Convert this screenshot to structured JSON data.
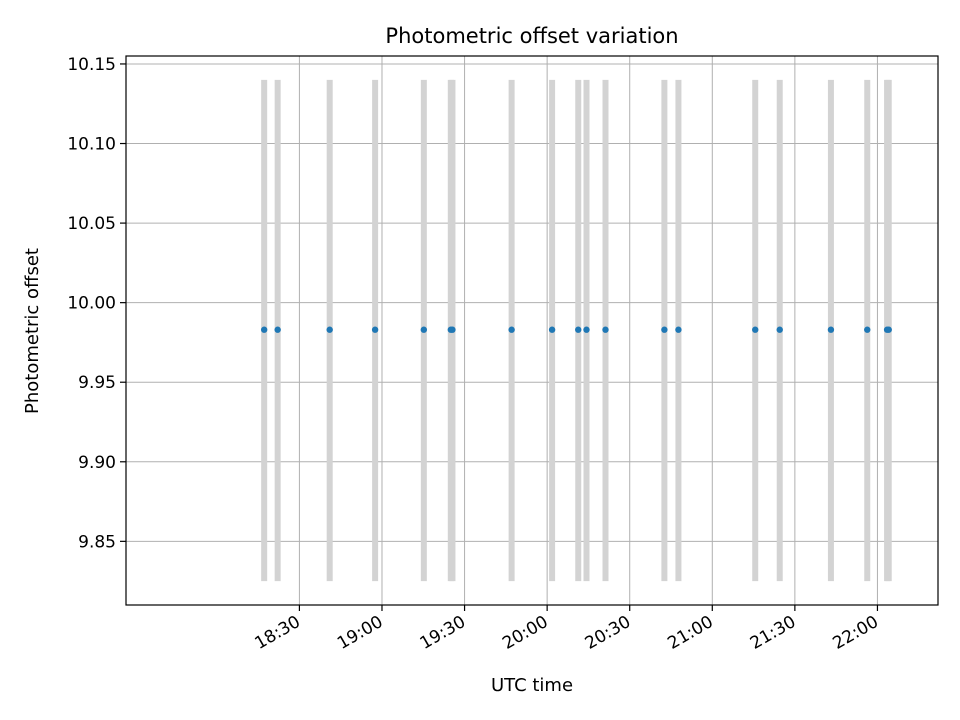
{
  "chart_data": {
    "type": "scatter",
    "title": "Photometric offset variation",
    "xlabel": "UTC time",
    "ylabel": "Photometric offset",
    "grid": true,
    "xlim_minutes": [
      1047,
      1342
    ],
    "ylim": [
      9.81,
      10.155
    ],
    "x_ticks": [
      {
        "minutes": 1110,
        "label": "18:30"
      },
      {
        "minutes": 1140,
        "label": "19:00"
      },
      {
        "minutes": 1170,
        "label": "19:30"
      },
      {
        "minutes": 1200,
        "label": "20:00"
      },
      {
        "minutes": 1230,
        "label": "20:30"
      },
      {
        "minutes": 1260,
        "label": "21:00"
      },
      {
        "minutes": 1290,
        "label": "21:30"
      },
      {
        "minutes": 1320,
        "label": "22:00"
      }
    ],
    "y_ticks": [
      {
        "value": 9.85,
        "label": "9.85"
      },
      {
        "value": 9.9,
        "label": "9.90"
      },
      {
        "value": 9.95,
        "label": "9.95"
      },
      {
        "value": 10.0,
        "label": "10.00"
      },
      {
        "value": 10.05,
        "label": "10.05"
      },
      {
        "value": 10.1,
        "label": "10.10"
      },
      {
        "value": 10.15,
        "label": "10.15"
      }
    ],
    "point_value": 9.983,
    "span_range": [
      9.825,
      10.14
    ],
    "x_minutes": [
      1097.2,
      1102.1,
      1121.0,
      1137.5,
      1155.2,
      1165.0,
      1165.6,
      1187.1,
      1201.8,
      1211.3,
      1214.3,
      1221.2,
      1242.6,
      1247.7,
      1275.6,
      1284.5,
      1303.1,
      1316.3,
      1323.5,
      1324.1
    ],
    "colors": {
      "points": "#1f77b4",
      "spans": "#d3d3d3",
      "grid": "#b0b0b0",
      "axes": "#000000"
    }
  }
}
